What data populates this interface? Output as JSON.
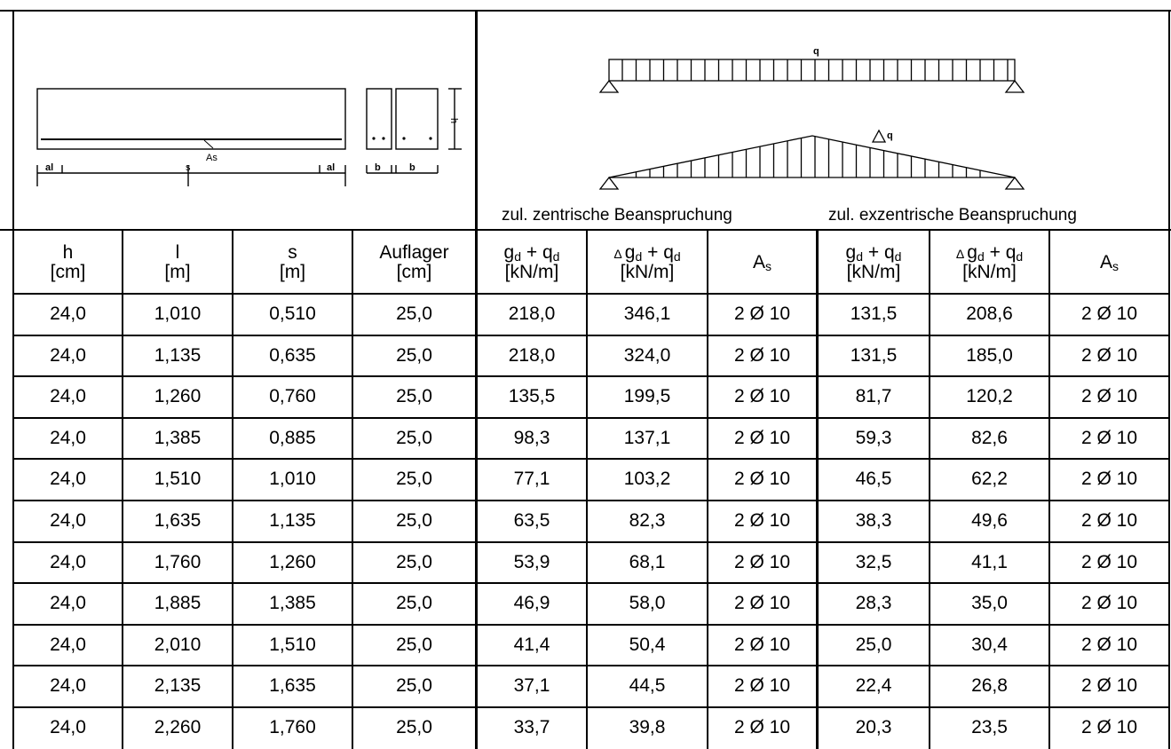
{
  "captions": {
    "central": "zul. zentrische Beanspruchung",
    "eccentric": "zul. exzentrische Beanspruchung"
  },
  "diagram": {
    "label_As": "As",
    "label_s": "s",
    "label_al": "al",
    "label_b": "b",
    "label_h": "h",
    "label_q": "q",
    "label_dq": "q",
    "delta": "Δ"
  },
  "headers": {
    "h": {
      "line1": "h",
      "line2": "[cm]"
    },
    "l": {
      "line1": "l",
      "line2": "[m]"
    },
    "s": {
      "line1": "s",
      "line2": "[m]"
    },
    "auflager": {
      "line1": "Auflager",
      "line2": "[cm]"
    },
    "gq": {
      "g": "g",
      "q": "q",
      "d": "d",
      "plus": " + ",
      "unit": "[kN/m]"
    },
    "dgq": {
      "delta": "Δ ",
      "g": "g",
      "q": "q",
      "d": "d",
      "plus": " + ",
      "unit": "[kN/m]"
    },
    "as": {
      "a": "A",
      "s": "s"
    }
  },
  "rows": [
    [
      "24,0",
      "1,010",
      "0,510",
      "25,0",
      "218,0",
      "346,1",
      "2 Ø 10",
      "131,5",
      "208,6",
      "2 Ø 10"
    ],
    [
      "24,0",
      "1,135",
      "0,635",
      "25,0",
      "218,0",
      "324,0",
      "2 Ø 10",
      "131,5",
      "185,0",
      "2 Ø 10"
    ],
    [
      "24,0",
      "1,260",
      "0,760",
      "25,0",
      "135,5",
      "199,5",
      "2 Ø 10",
      "81,7",
      "120,2",
      "2 Ø 10"
    ],
    [
      "24,0",
      "1,385",
      "0,885",
      "25,0",
      "98,3",
      "137,1",
      "2 Ø 10",
      "59,3",
      "82,6",
      "2 Ø 10"
    ],
    [
      "24,0",
      "1,510",
      "1,010",
      "25,0",
      "77,1",
      "103,2",
      "2 Ø 10",
      "46,5",
      "62,2",
      "2 Ø 10"
    ],
    [
      "24,0",
      "1,635",
      "1,135",
      "25,0",
      "63,5",
      "82,3",
      "2 Ø 10",
      "38,3",
      "49,6",
      "2 Ø 10"
    ],
    [
      "24,0",
      "1,760",
      "1,260",
      "25,0",
      "53,9",
      "68,1",
      "2 Ø 10",
      "32,5",
      "41,1",
      "2 Ø 10"
    ],
    [
      "24,0",
      "1,885",
      "1,385",
      "25,0",
      "46,9",
      "58,0",
      "2 Ø 10",
      "28,3",
      "35,0",
      "2 Ø 10"
    ],
    [
      "24,0",
      "2,010",
      "1,510",
      "25,0",
      "41,4",
      "50,4",
      "2 Ø 10",
      "25,0",
      "30,4",
      "2 Ø 10"
    ],
    [
      "24,0",
      "2,135",
      "1,635",
      "25,0",
      "37,1",
      "44,5",
      "2 Ø 10",
      "22,4",
      "26,8",
      "2 Ø 10"
    ],
    [
      "24,0",
      "2,260",
      "1,760",
      "25,0",
      "33,7",
      "39,8",
      "2 Ø 10",
      "20,3",
      "23,5",
      "2 Ø 10"
    ]
  ]
}
